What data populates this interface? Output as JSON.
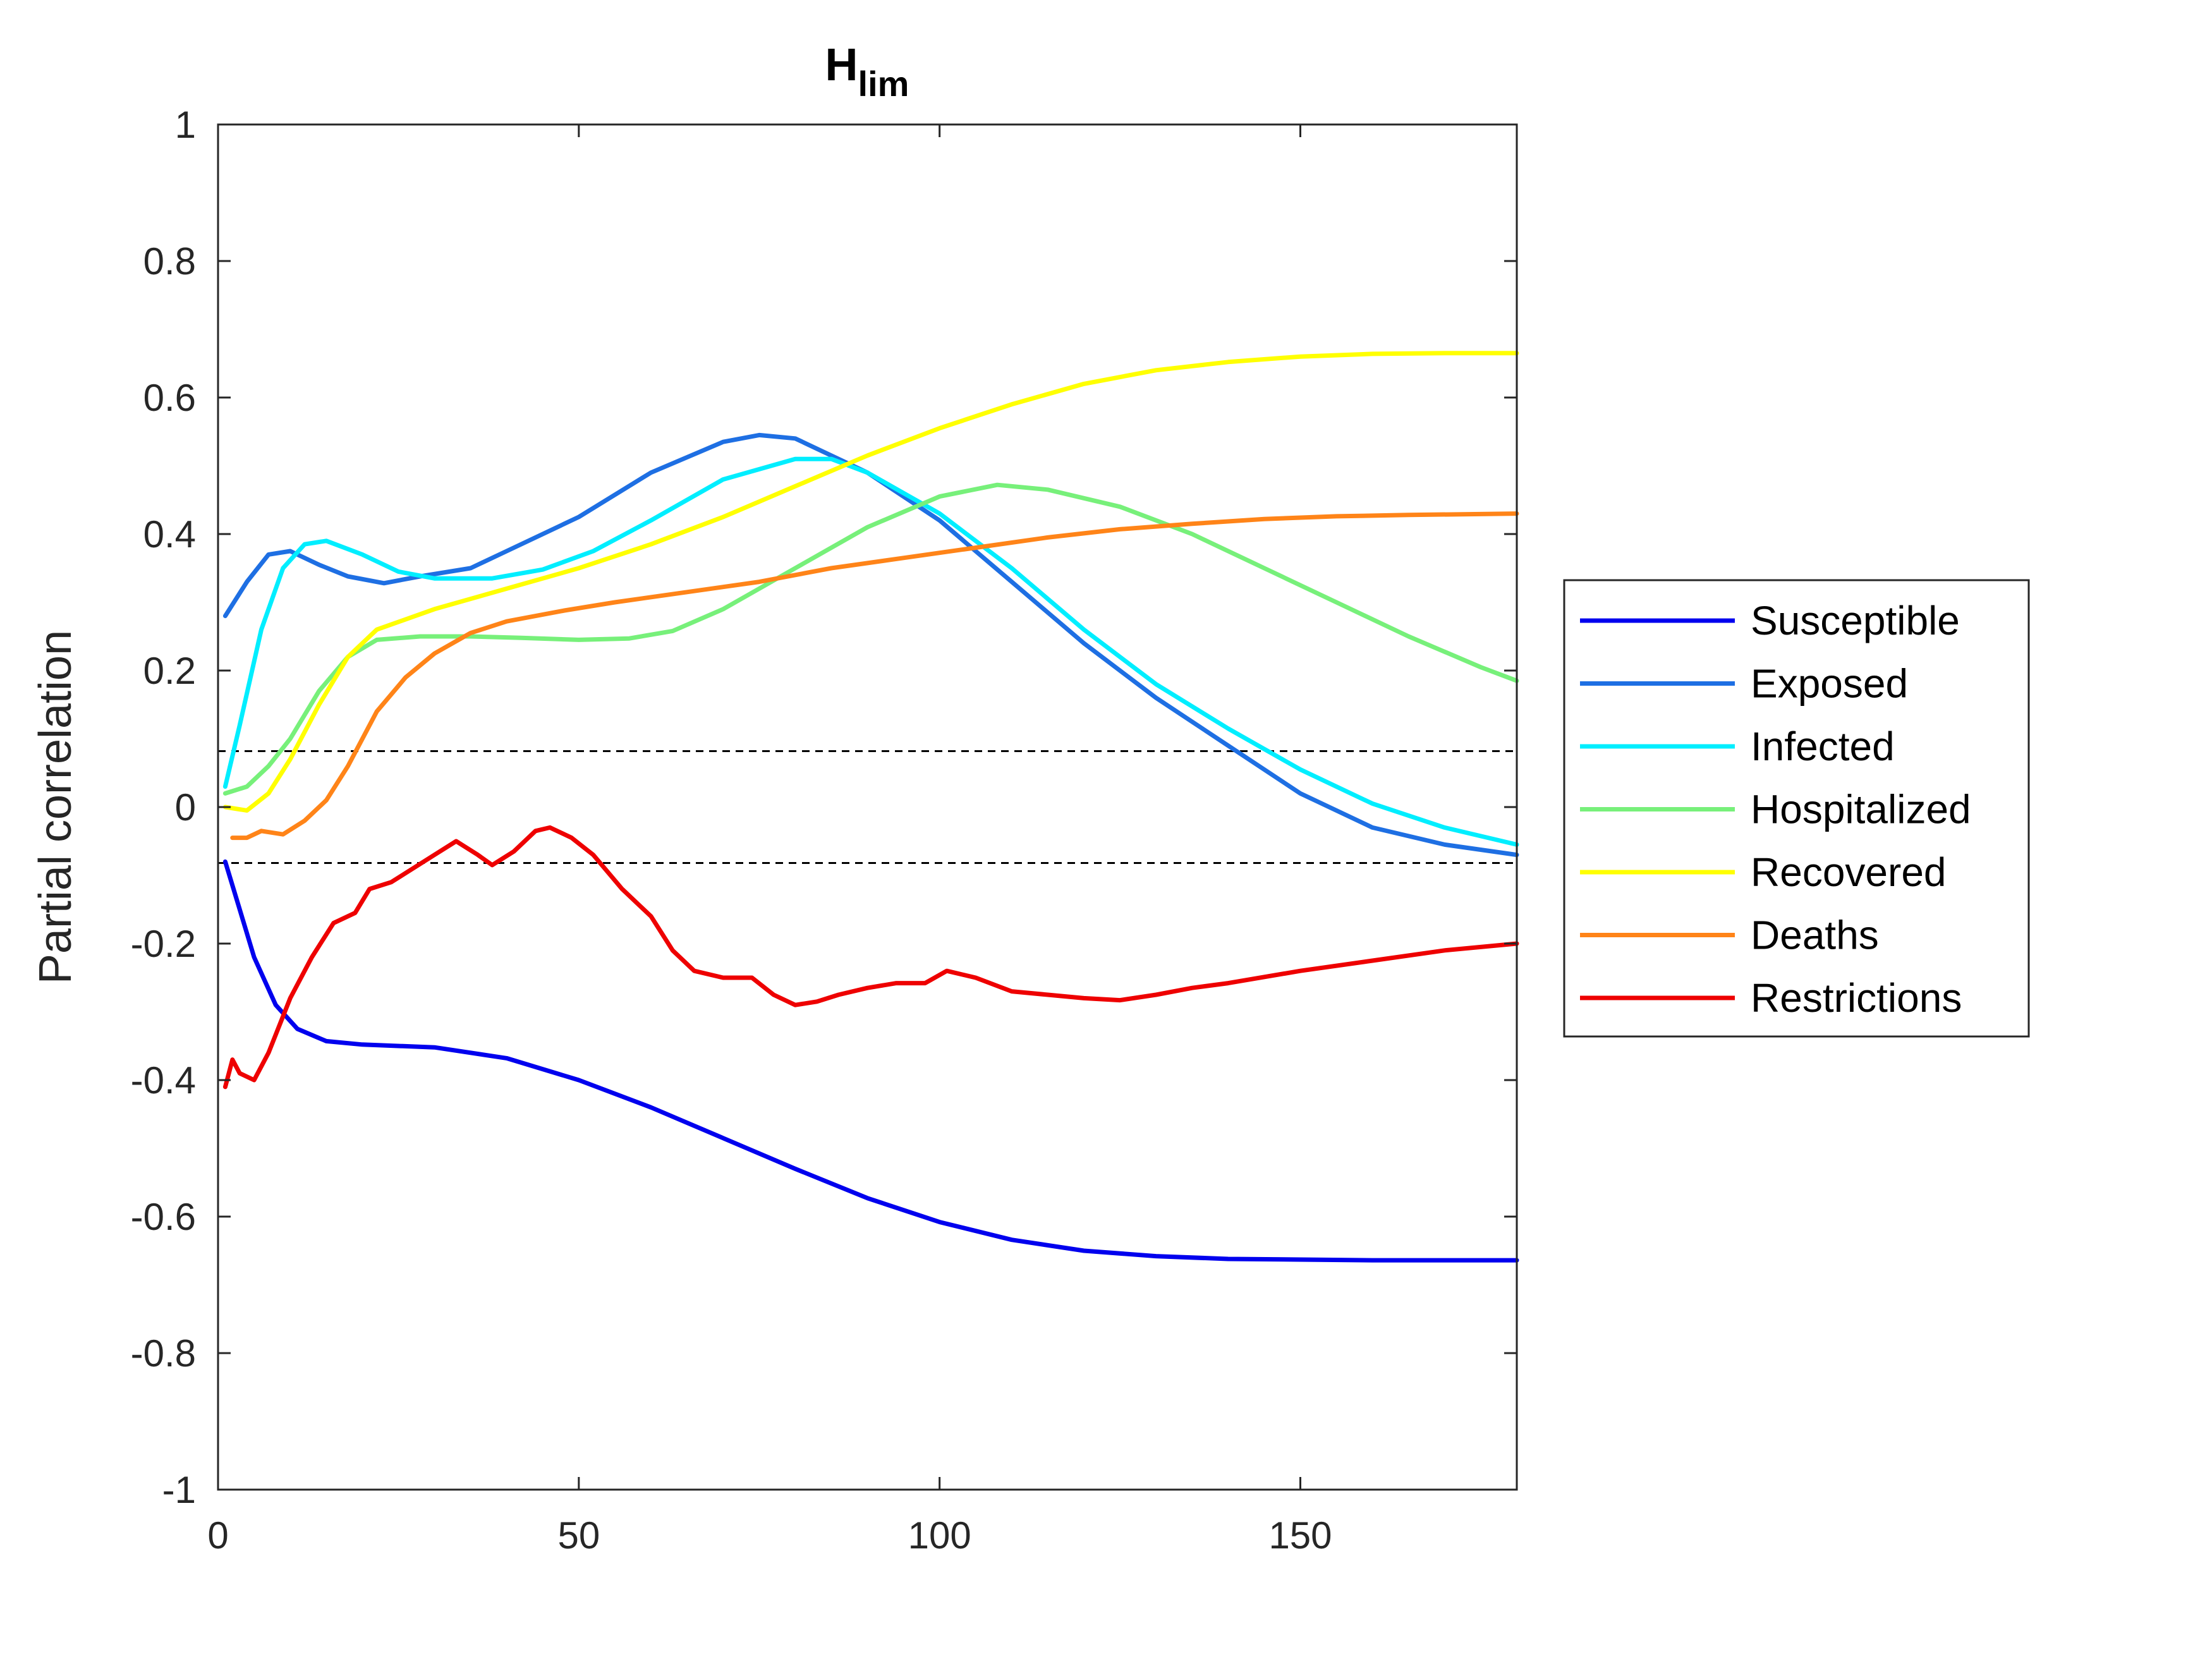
{
  "chart_data": {
    "type": "line",
    "title": "H",
    "title_subscript": "lim",
    "xlabel": "",
    "ylabel": "Partial correlation",
    "xlim": [
      0,
      180
    ],
    "ylim": [
      -1,
      1
    ],
    "xticks": [
      0,
      50,
      100,
      150
    ],
    "yticks": [
      1,
      0.8,
      0.6,
      0.4,
      0.2,
      0,
      -0.2,
      -0.4,
      -0.6,
      -0.8,
      -1
    ],
    "ytick_labels": [
      "1",
      "0.8",
      "0.6",
      "0.4",
      "0.2",
      "0",
      "-0.2",
      "-0.4",
      "-0.6",
      "-0.8",
      "-1"
    ],
    "grid": false,
    "legend_position": "outside-right",
    "reference_lines": [
      0.082,
      -0.082
    ],
    "series": [
      {
        "name": "Susceptible",
        "color": "#0000ee",
        "points": [
          [
            1,
            -0.08
          ],
          [
            3,
            -0.15
          ],
          [
            5,
            -0.22
          ],
          [
            8,
            -0.29
          ],
          [
            11,
            -0.325
          ],
          [
            15,
            -0.343
          ],
          [
            20,
            -0.348
          ],
          [
            30,
            -0.352
          ],
          [
            40,
            -0.368
          ],
          [
            50,
            -0.4
          ],
          [
            60,
            -0.44
          ],
          [
            70,
            -0.485
          ],
          [
            80,
            -0.53
          ],
          [
            90,
            -0.573
          ],
          [
            100,
            -0.608
          ],
          [
            110,
            -0.634
          ],
          [
            120,
            -0.65
          ],
          [
            130,
            -0.658
          ],
          [
            140,
            -0.662
          ],
          [
            150,
            -0.663
          ],
          [
            160,
            -0.664
          ],
          [
            170,
            -0.664
          ],
          [
            180,
            -0.664
          ]
        ]
      },
      {
        "name": "Exposed",
        "color": "#1e6fe3",
        "points": [
          [
            1,
            0.28
          ],
          [
            4,
            0.33
          ],
          [
            7,
            0.37
          ],
          [
            10,
            0.375
          ],
          [
            14,
            0.355
          ],
          [
            18,
            0.338
          ],
          [
            23,
            0.328
          ],
          [
            28,
            0.338
          ],
          [
            35,
            0.35
          ],
          [
            40,
            0.375
          ],
          [
            50,
            0.425
          ],
          [
            60,
            0.49
          ],
          [
            70,
            0.535
          ],
          [
            75,
            0.545
          ],
          [
            80,
            0.54
          ],
          [
            90,
            0.49
          ],
          [
            100,
            0.42
          ],
          [
            110,
            0.33
          ],
          [
            120,
            0.24
          ],
          [
            130,
            0.16
          ],
          [
            140,
            0.09
          ],
          [
            150,
            0.02
          ],
          [
            160,
            -0.03
          ],
          [
            170,
            -0.055
          ],
          [
            180,
            -0.07
          ]
        ]
      },
      {
        "name": "Infected",
        "color": "#00eeff",
        "points": [
          [
            1,
            0.03
          ],
          [
            3,
            0.12
          ],
          [
            6,
            0.26
          ],
          [
            9,
            0.35
          ],
          [
            12,
            0.385
          ],
          [
            15,
            0.39
          ],
          [
            20,
            0.37
          ],
          [
            25,
            0.345
          ],
          [
            30,
            0.335
          ],
          [
            38,
            0.335
          ],
          [
            45,
            0.348
          ],
          [
            52,
            0.375
          ],
          [
            60,
            0.42
          ],
          [
            70,
            0.48
          ],
          [
            80,
            0.51
          ],
          [
            85,
            0.51
          ],
          [
            90,
            0.49
          ],
          [
            100,
            0.43
          ],
          [
            110,
            0.35
          ],
          [
            120,
            0.26
          ],
          [
            130,
            0.18
          ],
          [
            140,
            0.115
          ],
          [
            150,
            0.055
          ],
          [
            160,
            0.005
          ],
          [
            170,
            -0.03
          ],
          [
            180,
            -0.055
          ]
        ]
      },
      {
        "name": "Hospitalized",
        "color": "#77f07a",
        "points": [
          [
            1,
            0.02
          ],
          [
            4,
            0.03
          ],
          [
            7,
            0.06
          ],
          [
            10,
            0.1
          ],
          [
            14,
            0.17
          ],
          [
            18,
            0.22
          ],
          [
            22,
            0.245
          ],
          [
            28,
            0.25
          ],
          [
            35,
            0.25
          ],
          [
            42,
            0.248
          ],
          [
            50,
            0.245
          ],
          [
            57,
            0.247
          ],
          [
            63,
            0.258
          ],
          [
            70,
            0.29
          ],
          [
            80,
            0.35
          ],
          [
            90,
            0.41
          ],
          [
            100,
            0.455
          ],
          [
            108,
            0.472
          ],
          [
            115,
            0.465
          ],
          [
            125,
            0.44
          ],
          [
            135,
            0.4
          ],
          [
            145,
            0.35
          ],
          [
            155,
            0.3
          ],
          [
            165,
            0.25
          ],
          [
            175,
            0.205
          ],
          [
            180,
            0.185
          ]
        ]
      },
      {
        "name": "Recovered",
        "color": "#ffff00",
        "points": [
          [
            1,
            0.0
          ],
          [
            4,
            -0.005
          ],
          [
            7,
            0.02
          ],
          [
            10,
            0.07
          ],
          [
            14,
            0.15
          ],
          [
            18,
            0.22
          ],
          [
            22,
            0.26
          ],
          [
            30,
            0.29
          ],
          [
            40,
            0.32
          ],
          [
            50,
            0.35
          ],
          [
            60,
            0.385
          ],
          [
            70,
            0.425
          ],
          [
            80,
            0.47
          ],
          [
            90,
            0.515
          ],
          [
            100,
            0.555
          ],
          [
            110,
            0.59
          ],
          [
            120,
            0.62
          ],
          [
            130,
            0.64
          ],
          [
            140,
            0.652
          ],
          [
            150,
            0.66
          ],
          [
            160,
            0.664
          ],
          [
            170,
            0.665
          ],
          [
            180,
            0.665
          ]
        ]
      },
      {
        "name": "Deaths",
        "color": "#ff8418",
        "points": [
          [
            2,
            -0.045
          ],
          [
            4,
            -0.045
          ],
          [
            6,
            -0.035
          ],
          [
            9,
            -0.04
          ],
          [
            12,
            -0.02
          ],
          [
            15,
            0.01
          ],
          [
            18,
            0.06
          ],
          [
            22,
            0.14
          ],
          [
            26,
            0.19
          ],
          [
            30,
            0.225
          ],
          [
            35,
            0.255
          ],
          [
            40,
            0.272
          ],
          [
            48,
            0.288
          ],
          [
            55,
            0.3
          ],
          [
            65,
            0.315
          ],
          [
            75,
            0.33
          ],
          [
            85,
            0.35
          ],
          [
            95,
            0.365
          ],
          [
            105,
            0.38
          ],
          [
            115,
            0.395
          ],
          [
            125,
            0.407
          ],
          [
            135,
            0.415
          ],
          [
            145,
            0.422
          ],
          [
            155,
            0.426
          ],
          [
            165,
            0.428
          ],
          [
            180,
            0.43
          ]
        ]
      },
      {
        "name": "Restrictions",
        "color": "#ee0000",
        "points": [
          [
            1,
            -0.41
          ],
          [
            2,
            -0.37
          ],
          [
            3,
            -0.39
          ],
          [
            5,
            -0.4
          ],
          [
            7,
            -0.36
          ],
          [
            10,
            -0.28
          ],
          [
            13,
            -0.22
          ],
          [
            16,
            -0.17
          ],
          [
            19,
            -0.155
          ],
          [
            21,
            -0.12
          ],
          [
            24,
            -0.11
          ],
          [
            27,
            -0.09
          ],
          [
            30,
            -0.07
          ],
          [
            33,
            -0.05
          ],
          [
            36,
            -0.07
          ],
          [
            38,
            -0.085
          ],
          [
            41,
            -0.065
          ],
          [
            44,
            -0.035
          ],
          [
            46,
            -0.03
          ],
          [
            49,
            -0.045
          ],
          [
            52,
            -0.07
          ],
          [
            56,
            -0.12
          ],
          [
            60,
            -0.16
          ],
          [
            63,
            -0.21
          ],
          [
            66,
            -0.24
          ],
          [
            70,
            -0.25
          ],
          [
            74,
            -0.25
          ],
          [
            77,
            -0.275
          ],
          [
            80,
            -0.29
          ],
          [
            83,
            -0.285
          ],
          [
            86,
            -0.275
          ],
          [
            90,
            -0.265
          ],
          [
            94,
            -0.258
          ],
          [
            98,
            -0.258
          ],
          [
            101,
            -0.24
          ],
          [
            105,
            -0.25
          ],
          [
            110,
            -0.27
          ],
          [
            115,
            -0.275
          ],
          [
            120,
            -0.28
          ],
          [
            125,
            -0.283
          ],
          [
            130,
            -0.275
          ],
          [
            135,
            -0.265
          ],
          [
            140,
            -0.258
          ],
          [
            150,
            -0.24
          ],
          [
            160,
            -0.225
          ],
          [
            170,
            -0.21
          ],
          [
            180,
            -0.2
          ]
        ]
      }
    ]
  }
}
